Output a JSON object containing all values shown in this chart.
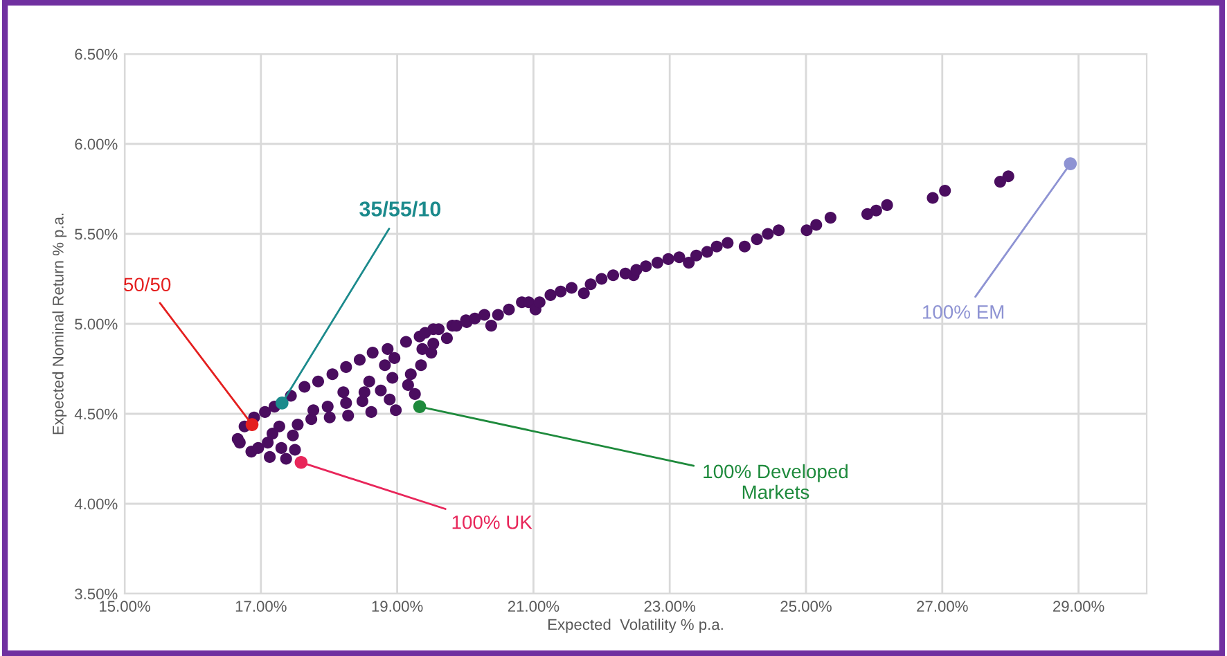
{
  "chart_data": {
    "type": "scatter",
    "xlabel": "Expected  Volatility % p.a.",
    "ylabel": "Expected Nominal Return % p.a.",
    "xlim": [
      15,
      30
    ],
    "ylim": [
      3.5,
      6.5
    ],
    "xticks": [
      {
        "value": 15,
        "label": "15.00%"
      },
      {
        "value": 17,
        "label": "17.00%"
      },
      {
        "value": 19,
        "label": "19.00%"
      },
      {
        "value": 21,
        "label": "21.00%"
      },
      {
        "value": 23,
        "label": "23.00%"
      },
      {
        "value": 25,
        "label": "25.00%"
      },
      {
        "value": 27,
        "label": "27.00%"
      },
      {
        "value": 29,
        "label": "29.00%"
      }
    ],
    "yticks": [
      {
        "value": 3.5,
        "label": "3.50%"
      },
      {
        "value": 4.0,
        "label": "4.00%"
      },
      {
        "value": 4.5,
        "label": "4.50%"
      },
      {
        "value": 5.0,
        "label": "5.00%"
      },
      {
        "value": 5.5,
        "label": "5.50%"
      },
      {
        "value": 6.0,
        "label": "6.00%"
      },
      {
        "value": 6.5,
        "label": "6.50%"
      }
    ],
    "grid": true,
    "marker": "circle",
    "legend": false,
    "series": [
      {
        "color": "#4a0d5f",
        "x": [
          16.69,
          16.66,
          16.76,
          16.9,
          17.06,
          17.2,
          17.44,
          17.64,
          17.84,
          18.05,
          18.25,
          18.45,
          18.64,
          18.86,
          19.13,
          19.33,
          19.53,
          19.81,
          20.01,
          16.86,
          16.96,
          17.13,
          17.1,
          17.3,
          17.5,
          17.37,
          17.17,
          17.27,
          17.47,
          17.54,
          17.74,
          17.77,
          18.01,
          17.98,
          18.28,
          18.25,
          18.21,
          18.49,
          18.52,
          18.62,
          18.59,
          18.76,
          18.82,
          18.93,
          18.89,
          18.98,
          18.96,
          19.16,
          19.2,
          19.26,
          19.35,
          19.5,
          19.53,
          19.37,
          19.41,
          19.61,
          19.73,
          19.87,
          20.02,
          20.14,
          20.28,
          20.38,
          20.48,
          20.64,
          20.83,
          20.93,
          21.03,
          21.09,
          21.25,
          21.4,
          21.56,
          21.74,
          21.84,
          22.0,
          22.17,
          22.35,
          22.47,
          22.51,
          22.65,
          22.82,
          22.98,
          23.14,
          23.28,
          23.39,
          23.55,
          23.69,
          23.85,
          24.1,
          24.28,
          24.44,
          24.6,
          25.01,
          25.15,
          25.36,
          25.9,
          26.03,
          26.19,
          26.86,
          27.04,
          27.85,
          27.97
        ],
        "values": [
          4.34,
          4.36,
          4.43,
          4.48,
          4.51,
          4.54,
          4.6,
          4.65,
          4.68,
          4.72,
          4.76,
          4.8,
          4.84,
          4.86,
          4.9,
          4.93,
          4.97,
          4.99,
          5.02,
          4.29,
          4.31,
          4.26,
          4.34,
          4.31,
          4.3,
          4.25,
          4.39,
          4.43,
          4.38,
          4.44,
          4.47,
          4.52,
          4.48,
          4.54,
          4.49,
          4.56,
          4.62,
          4.57,
          4.62,
          4.51,
          4.68,
          4.63,
          4.77,
          4.7,
          4.58,
          4.52,
          4.81,
          4.66,
          4.72,
          4.61,
          4.77,
          4.84,
          4.89,
          4.86,
          4.95,
          4.97,
          4.92,
          4.99,
          5.01,
          5.03,
          5.05,
          4.99,
          5.05,
          5.08,
          5.12,
          5.12,
          5.08,
          5.12,
          5.16,
          5.18,
          5.2,
          5.17,
          5.22,
          5.25,
          5.27,
          5.28,
          5.27,
          5.3,
          5.32,
          5.34,
          5.36,
          5.37,
          5.34,
          5.38,
          5.4,
          5.43,
          5.45,
          5.43,
          5.47,
          5.5,
          5.52,
          5.52,
          5.55,
          5.59,
          5.61,
          5.63,
          5.66,
          5.7,
          5.74,
          5.79,
          5.82
        ]
      },
      {
        "name": "35/55/10",
        "color": "#1b8a8c",
        "x": [
          17.31
        ],
        "values": [
          4.56
        ]
      },
      {
        "name": "50/50",
        "color": "#e41f1f",
        "x": [
          16.87
        ],
        "values": [
          4.44
        ]
      },
      {
        "name": "100% UK",
        "color": "#e8265a",
        "x": [
          17.59
        ],
        "values": [
          4.23
        ]
      },
      {
        "name": "100% Developed\nMarkets",
        "color": "#1e8a3c",
        "x": [
          19.33
        ],
        "values": [
          4.54
        ]
      },
      {
        "name": "100% EM",
        "color": "#8e93d3",
        "x": [
          28.88
        ],
        "values": [
          5.89
        ]
      }
    ]
  }
}
